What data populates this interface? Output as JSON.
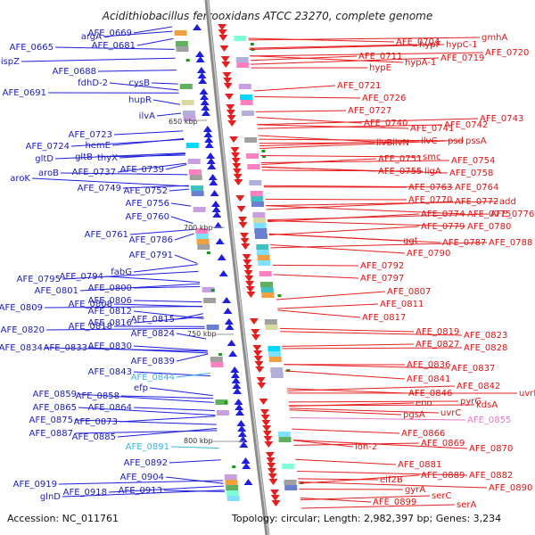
{
  "title": "Acidithiobacillus ferrooxidans ATCC 23270, complete genome",
  "footer": {
    "accession": "Accession: NC_011761",
    "summary": "Topology: circular; Length: 2,982,397 bp; Genes: 3,234"
  },
  "ticks": [
    "650 kbp",
    "700 kbp",
    "750 kbp",
    "800 kbp"
  ],
  "colors": {
    "plus_strand": "#1e1ede",
    "minus_strand": "#e61e1e",
    "backbone": "#808080",
    "highlight_cyan": "#3cb4e6",
    "highlight_pink": "#e678c8"
  },
  "left_labels": [
    "AFE_0669",
    "argA",
    "AFE_0665",
    "AFE_0681",
    "ispZ",
    "AFE_0688",
    "fdhD-2",
    "cysB",
    "AFE_0691",
    "hupR",
    "ilvA",
    "AFE_0723",
    "hemE",
    "AFE_0724",
    "gltD",
    "gltB",
    "thyX",
    "aroB",
    "AFE_0737",
    "AFE_0739",
    "aroK",
    "AFE_0749",
    "AFE_0752",
    "AFE_0756",
    "AFE_0760",
    "AFE_0761",
    "AFE_0786",
    "AFE_0791",
    "fabG",
    "AFE_0794",
    "AFE_0795",
    "AFE_0800",
    "AFE_0801",
    "AFE_0806",
    "AFE_0808",
    "AFE_0809",
    "AFE_0812",
    "AFE_0816",
    "AFE_0815",
    "AFE_0818",
    "AFE_0820",
    "AFE_0824",
    "AFE_0830",
    "AFE_0833",
    "AFE_0834",
    "AFE_0839",
    "AFE_0843",
    "AFE_0844",
    "efp",
    "AFE_0858",
    "AFE_0859",
    "AFE_0864",
    "AFE_0865",
    "AFE_0873",
    "AFE_0875",
    "AFE_0885",
    "AFE_0887",
    "AFE_0891",
    "AFE_0892",
    "AFE_0904",
    "AFE_0913",
    "AFE_0919",
    "AFE_0918",
    "glnD"
  ],
  "right_labels": [
    "AFE_0704",
    "gmhA",
    "hypF",
    "hypC-1",
    "AFE_0711",
    "AFE_0720",
    "hypA-1",
    "AFE_0719",
    "hypE",
    "AFE_0721",
    "AFE_0726",
    "AFE_0727",
    "AFE_0740",
    "AFE_0743",
    "AFE_0741",
    "AFE_0742",
    "ilvB",
    "ilvN",
    "ilvC",
    "psd",
    "pssA",
    "AFE_0751",
    "smc",
    "AFE_0754",
    "AFE_0755",
    "ligA",
    "AFE_0758",
    "AFE_0763",
    "AFE_0764",
    "AFE_0770",
    "AFE_0772",
    "add",
    "AFE_0774",
    "AFE_0775",
    "AFE_0776",
    "AFE_0779",
    "AFE_0780",
    "ggt",
    "AFE_0787",
    "AFE_0788",
    "AFE_0790",
    "AFE_0792",
    "AFE_0797",
    "AFE_0807",
    "AFE_0811",
    "AFE_0817",
    "AFE_0819",
    "AFE_0823",
    "AFE_0827",
    "AFE_0828",
    "AFE_0836",
    "AFE_0837",
    "AFE_0841",
    "AFE_0842",
    "uvrB",
    "AFE_0846",
    "pyrG",
    "eno",
    "kdsA",
    "pgsA",
    "uvrC",
    "AFE_0855",
    "AFE_0866",
    "AFE_0869",
    "lon-2",
    "AFE_0870",
    "AFE_0881",
    "AFE_0882",
    "AFE_0889",
    "eif2B",
    "AFE_0890",
    "gyrA",
    "serC",
    "AFE_0899",
    "serA"
  ]
}
